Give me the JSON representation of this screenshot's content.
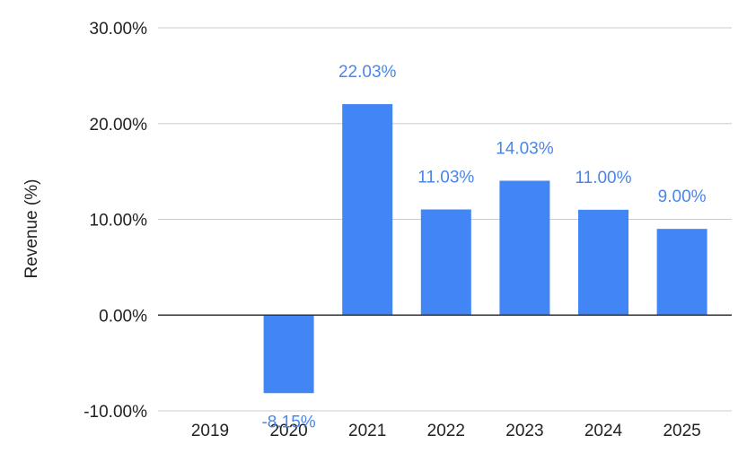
{
  "chart_data": {
    "type": "bar",
    "title": "",
    "xlabel": "",
    "ylabel": "Revenue (%)",
    "categories": [
      "2019",
      "2020",
      "2021",
      "2022",
      "2023",
      "2024",
      "2025"
    ],
    "series": [
      {
        "values": [
          null,
          -8.15,
          22.03,
          11.03,
          14.03,
          11.0,
          9.0
        ],
        "data_labels": [
          "",
          "-8.15%",
          "22.03%",
          "11.03%",
          "14.03%",
          "11.00%",
          "9.00%"
        ]
      }
    ],
    "ylim": [
      -10,
      30
    ],
    "yticks": [
      30,
      20,
      10,
      0,
      -10
    ],
    "ytick_labels": [
      "30.00%",
      "20.00%",
      "10.00%",
      "0.00%",
      "-10.00%"
    ],
    "grid": true,
    "legend": "none",
    "colors": {
      "bar": "#4285f4",
      "data_label": "#4a86e8",
      "grid": "#cccccc",
      "zero_line": "#333333",
      "text": "#222222"
    }
  }
}
